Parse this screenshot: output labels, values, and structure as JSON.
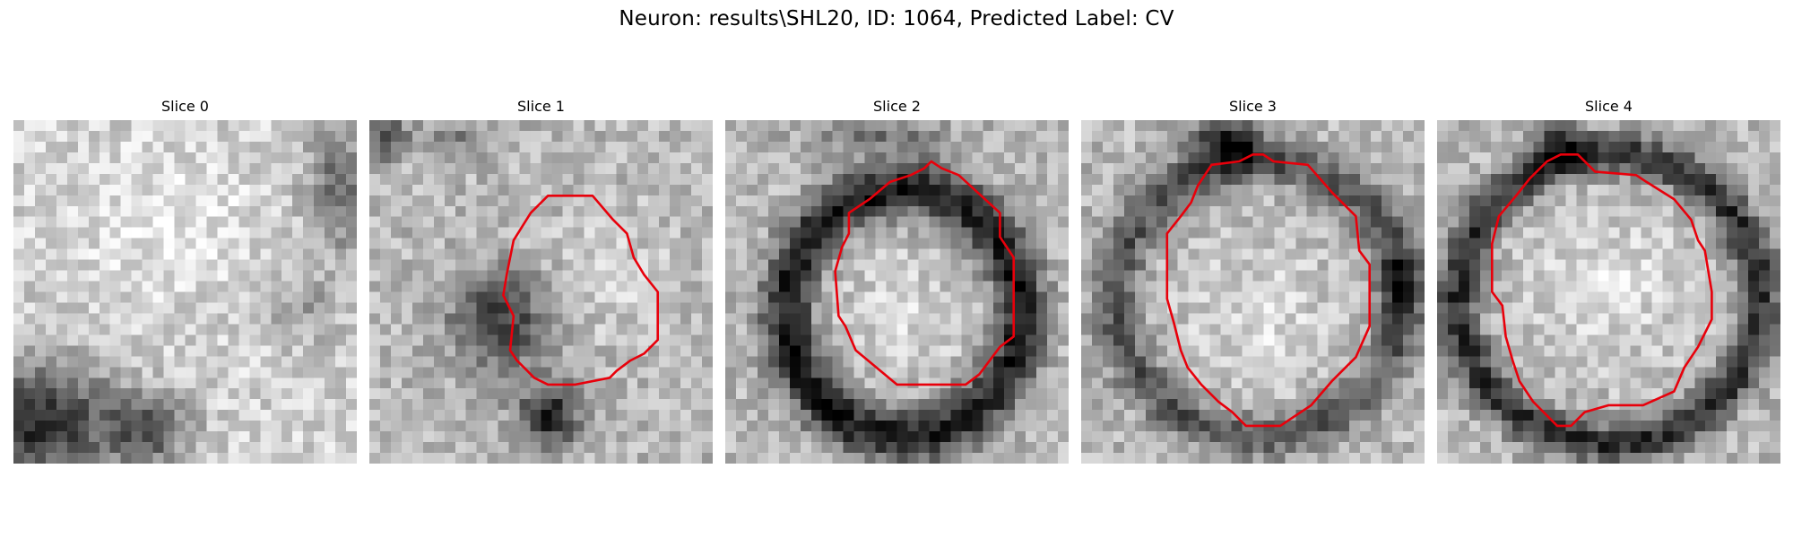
{
  "figure": {
    "title": "Neuron: results\\SHL20, ID: 1064, Predicted Label: CV"
  },
  "slices": [
    {
      "label": "Slice 0",
      "has_contour": false
    },
    {
      "label": "Slice 1",
      "has_contour": true
    },
    {
      "label": "Slice 2",
      "has_contour": true
    },
    {
      "label": "Slice 3",
      "has_contour": true
    },
    {
      "label": "Slice 4",
      "has_contour": true
    }
  ],
  "colors": {
    "contour": "#e8000b",
    "colormap": "gray"
  }
}
